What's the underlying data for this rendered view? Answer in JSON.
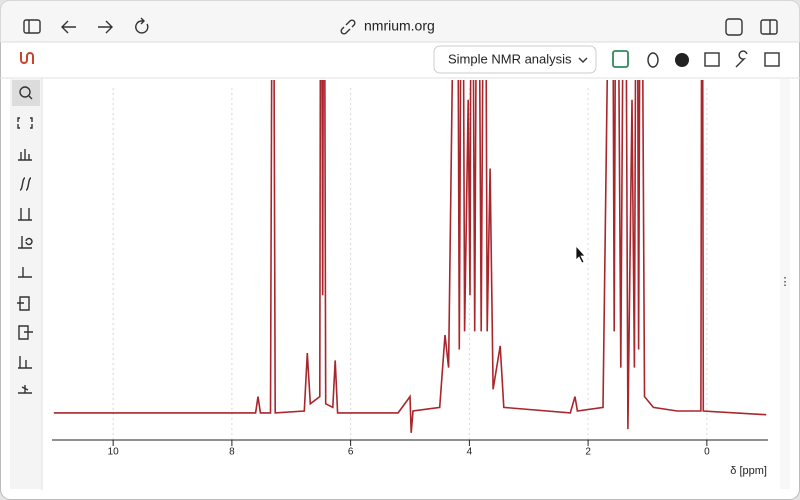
{
  "browser": {
    "url": "nmrium.org"
  },
  "toolbar": {
    "workspace": "Simple NMR analysis"
  },
  "chart_data": {
    "type": "line",
    "x_label": "δ [ppm]",
    "x": [
      11.0,
      7.6,
      7.56,
      7.52,
      7.35,
      7.31,
      7.27,
      6.78,
      6.73,
      6.68,
      6.52,
      6.5,
      6.47,
      6.45,
      6.42,
      6.3,
      6.26,
      6.22,
      5.2,
      5.0,
      4.98,
      4.95,
      4.5,
      4.41,
      4.35,
      4.21,
      4.17,
      4.12,
      4.08,
      4.02,
      3.99,
      3.96,
      3.91,
      3.86,
      3.8,
      3.74,
      3.7,
      3.65,
      3.6,
      3.48,
      3.42,
      2.3,
      2.22,
      2.18,
      1.75,
      1.6,
      1.56,
      1.52,
      1.45,
      1.38,
      1.33,
      1.26,
      1.22,
      1.18,
      1.15,
      1.11,
      1.05,
      0.9,
      0.5,
      0.1,
      0.08,
      0.06,
      -1.0
    ],
    "series": [
      {
        "color": "#a8262c",
        "values": [
          7.5,
          7.5,
          12,
          7.5,
          7.5,
          200,
          7.5,
          8,
          24,
          10,
          12,
          200,
          40,
          200,
          10,
          9,
          22,
          7.5,
          7.5,
          12,
          2,
          8,
          9,
          29,
          20,
          200,
          25,
          200,
          30,
          94,
          40,
          200,
          30,
          200,
          30,
          200,
          30,
          75,
          14,
          26,
          9,
          7.5,
          12,
          8,
          9,
          200,
          30,
          200,
          20,
          200,
          3,
          94,
          20,
          200,
          25,
          200,
          12,
          9,
          8,
          8,
          200,
          8,
          7
        ]
      }
    ],
    "xlim": [
      11.03,
      -1.03
    ],
    "ylim": [
      0,
      100
    ],
    "xticks": [
      10,
      8,
      6,
      4,
      2,
      0
    ],
    "grid": true
  }
}
